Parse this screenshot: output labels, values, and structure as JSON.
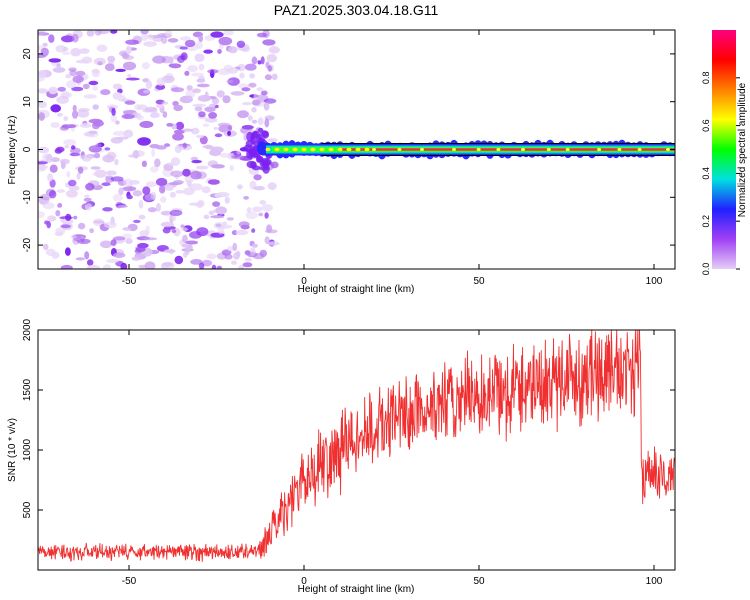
{
  "figure": {
    "title": "PAZ1.2025.303.04.18.G11"
  },
  "chart_data": [
    {
      "type": "heatmap",
      "title": "PAZ1.2025.303.04.18.G11",
      "xlabel": "Height of straight line (km)",
      "ylabel": "Frequency (Hz)",
      "xlim": [
        -76,
        106
      ],
      "ylim": [
        -25,
        25
      ],
      "xticks": [
        -50,
        0,
        50,
        100
      ],
      "yticks": [
        -20,
        -10,
        0,
        10,
        20
      ],
      "grid": false,
      "noise_region_x": [
        -76,
        -10
      ],
      "signal_line": {
        "frequency": 0,
        "x_start": -12,
        "x_end": 106
      },
      "colorbar": {
        "label": "Normalized spectral amplitude",
        "range": [
          0,
          1
        ],
        "ticks": [
          0.0,
          0.2,
          0.4,
          0.6,
          0.8
        ],
        "colors": [
          "#e4cdf5",
          "#a040f5",
          "#2020ff",
          "#00e0e0",
          "#00ff00",
          "#ffff00",
          "#ff8000",
          "#ff0000",
          "#ff0080"
        ]
      }
    },
    {
      "type": "line",
      "xlabel": "Height of straight line (km)",
      "ylabel": "SNR (10 * v/v)",
      "xlim": [
        -76,
        106
      ],
      "ylim": [
        0,
        2000
      ],
      "xticks": [
        -50,
        0,
        50,
        100
      ],
      "yticks": [
        500,
        1000,
        1500,
        2000
      ],
      "color": "#f03030",
      "series": [
        {
          "name": "SNR",
          "x": [
            -76,
            -60,
            -40,
            -20,
            -12,
            -10,
            -5,
            0,
            5,
            10,
            15,
            20,
            30,
            40,
            50,
            60,
            70,
            80,
            90,
            96,
            96.5,
            100,
            106
          ],
          "values": [
            150,
            150,
            150,
            150,
            170,
            300,
            550,
            750,
            900,
            1000,
            1100,
            1180,
            1300,
            1380,
            1450,
            1520,
            1580,
            1620,
            1680,
            1700,
            800,
            780,
            780
          ]
        }
      ]
    }
  ]
}
